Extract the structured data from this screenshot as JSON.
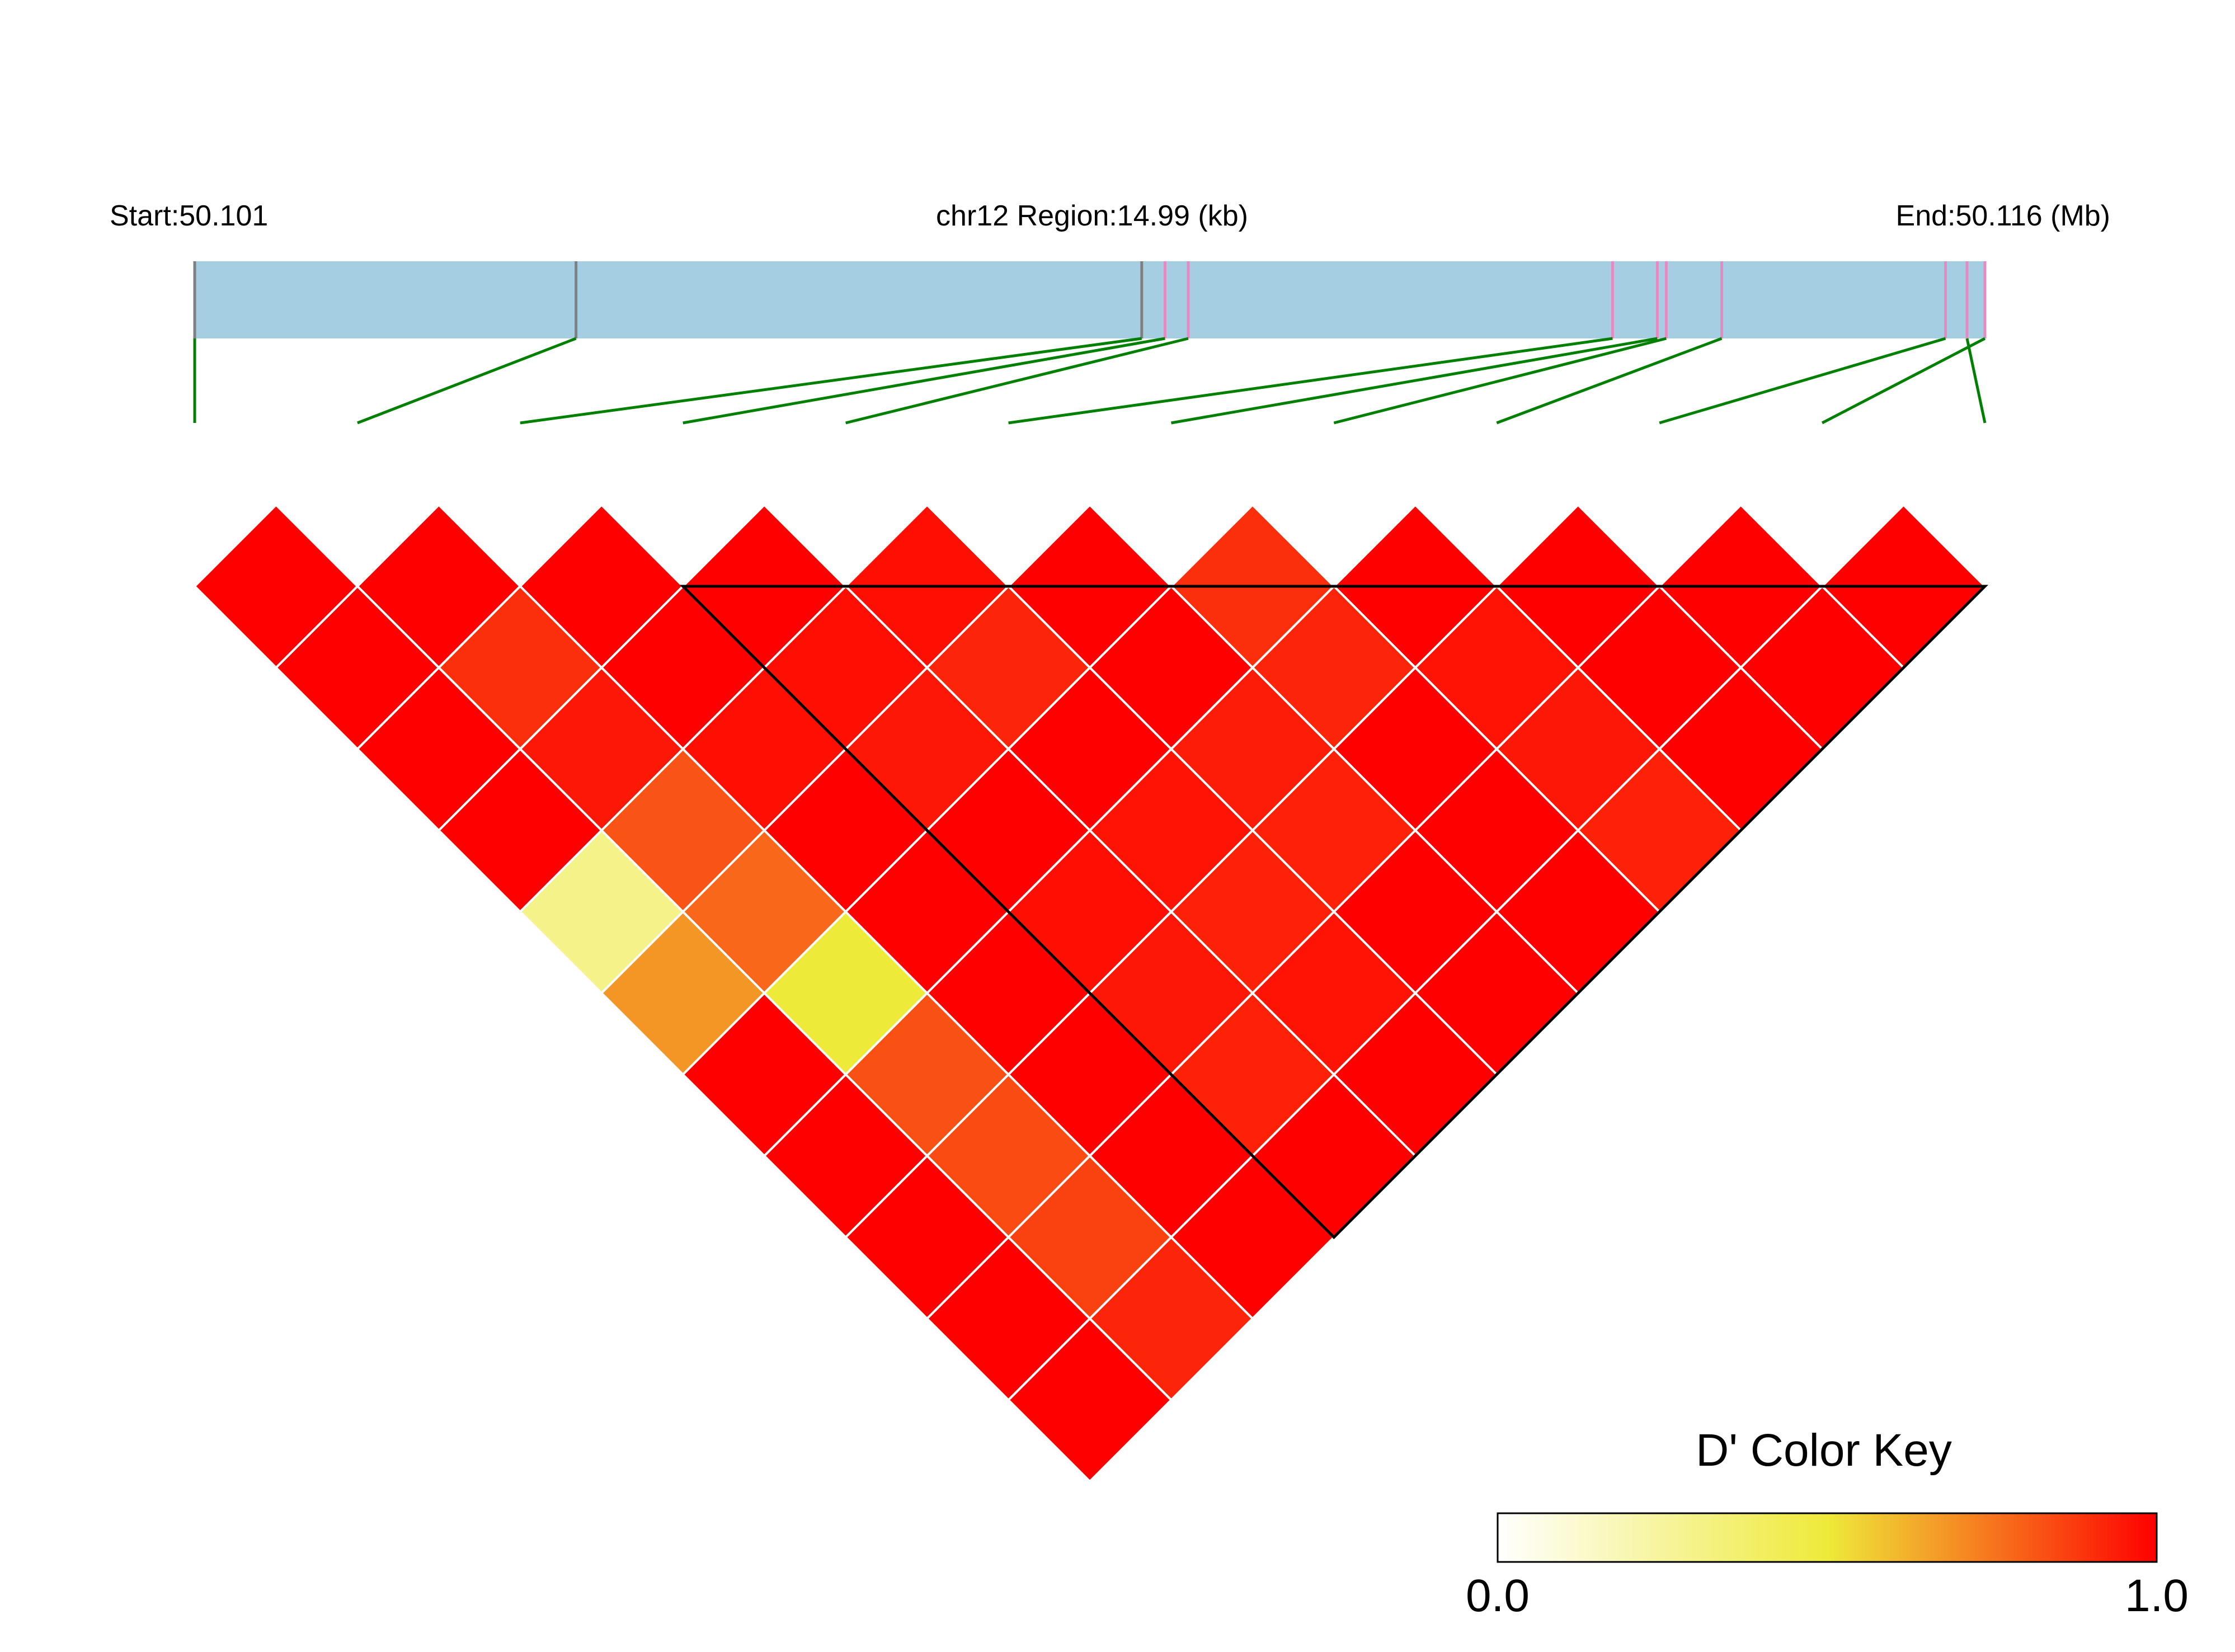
{
  "header": {
    "start_label": "Start:50.101",
    "region_label": "chr12 Region:14.99 (kb)",
    "end_label": "End:50.116 (Mb)"
  },
  "colors": {
    "track": "#a6cee3",
    "gray_tick": "#808080",
    "pink_tick": "#e68ac1",
    "connector": "#008000",
    "block_outline": "#000000",
    "cell_separator": "#ffffff",
    "scale_low": "#ffffff",
    "scale_mid": "#eeea3a",
    "scale_high": "#ff0000"
  },
  "legend": {
    "title": "D' Color Key",
    "min_label": "0.0",
    "max_label": "1.0"
  },
  "chart_data": {
    "type": "heatmap",
    "title": "",
    "measure": "D'",
    "region": {
      "chromosome": "chr12",
      "start_mb": 50.101,
      "end_mb": 50.116,
      "length_kb": 14.99
    },
    "snp_positions_fraction": [
      0.0,
      0.213,
      0.529,
      0.542,
      0.555,
      0.792,
      0.817,
      0.822,
      0.853,
      0.978,
      1.0,
      0.99
    ],
    "snp_tick_color": [
      "gray",
      "gray",
      "gray",
      "pink",
      "pink",
      "pink",
      "pink",
      "pink",
      "pink",
      "pink",
      "pink",
      "pink"
    ],
    "n_snps": 12,
    "ld_block": {
      "first_snp": 4,
      "last_snp": 12
    },
    "dprime_by_distance": [
      [
        1.0,
        1.0,
        1.0,
        1.0,
        0.97,
        1.0,
        0.9,
        1.0,
        1.0,
        1.0,
        1.0
      ],
      [
        1.0,
        0.9,
        1.0,
        0.97,
        0.92,
        1.0,
        0.92,
        0.96,
        1.0,
        1.0
      ],
      [
        1.0,
        0.95,
        0.97,
        0.95,
        1.0,
        0.94,
        1.0,
        0.95,
        1.0
      ],
      [
        1.0,
        0.82,
        1.0,
        1.0,
        0.96,
        0.93,
        1.0,
        0.93
      ],
      [
        0.3,
        0.78,
        1.0,
        0.97,
        0.93,
        1.0,
        1.0
      ],
      [
        0.68,
        0.5,
        1.0,
        0.95,
        0.96,
        1.0
      ],
      [
        1.0,
        0.83,
        1.0,
        0.93,
        1.0
      ],
      [
        1.0,
        0.84,
        1.0,
        1.0
      ],
      [
        1.0,
        0.86,
        1.0
      ],
      [
        1.0,
        0.92
      ],
      [
        1.0
      ]
    ],
    "color_scale": {
      "min": 0.0,
      "max": 1.0,
      "colors": [
        "white",
        "yellow",
        "red"
      ]
    }
  }
}
